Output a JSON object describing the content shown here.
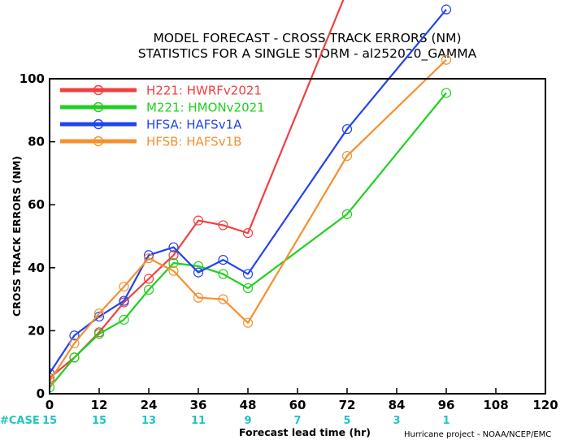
{
  "chart_data": {
    "type": "line",
    "title_line1": "MODEL FORECAST - CROSS TRACK ERRORS (NM)",
    "title_line2": "STATISTICS FOR A SINGLE STORM - al252020_GAMMA",
    "xlabel": "Forecast lead time (hr)",
    "ylabel": "CROSS TRACK ERRORS (NM)",
    "xlim": [
      0,
      120
    ],
    "ylim": [
      0,
      100
    ],
    "xticks": [
      0,
      12,
      24,
      36,
      48,
      60,
      72,
      84,
      96,
      108,
      120
    ],
    "yticks": [
      0,
      20,
      40,
      60,
      80,
      100
    ],
    "grid": false,
    "legend_position": "top-left",
    "case_label": "#CASE",
    "case_counts": [
      {
        "x": 0,
        "n": "15"
      },
      {
        "x": 12,
        "n": "15"
      },
      {
        "x": 24,
        "n": "13"
      },
      {
        "x": 36,
        "n": "11"
      },
      {
        "x": 48,
        "n": "9"
      },
      {
        "x": 60,
        "n": "7"
      },
      {
        "x": 72,
        "n": "5"
      },
      {
        "x": 84,
        "n": "3"
      },
      {
        "x": 96,
        "n": "1"
      }
    ],
    "case_color": "#22c4c4",
    "credit": "Hurricane project - NOAA/NCEP/EMC",
    "series": [
      {
        "name": "H221: HWRFv2021",
        "color": "#f04040",
        "x": [
          0,
          6,
          12,
          18,
          24,
          30,
          36,
          42,
          48,
          72
        ],
        "y": [
          5,
          11.5,
          19.5,
          29,
          36.5,
          44,
          55,
          53.5,
          51,
          128
        ]
      },
      {
        "name": "M221: HMONv2021",
        "color": "#20d020",
        "x": [
          0,
          6,
          12,
          18,
          24,
          30,
          36,
          42,
          48,
          72,
          96
        ],
        "y": [
          2,
          11.5,
          19,
          23.5,
          33,
          41.5,
          40.5,
          38,
          33.5,
          57,
          95.5
        ]
      },
      {
        "name": "HFSA: HAFSv1A",
        "color": "#2244ee",
        "x": [
          0,
          6,
          12,
          18,
          24,
          30,
          36,
          42,
          48,
          72,
          96
        ],
        "y": [
          6.5,
          18.5,
          24.5,
          29.5,
          44,
          46.5,
          38.5,
          42.5,
          38,
          84,
          122
        ]
      },
      {
        "name": "HFSB: HAFSv1B",
        "color": "#f59030",
        "x": [
          0,
          6,
          12,
          18,
          24,
          30,
          36,
          42,
          48,
          72,
          96
        ],
        "y": [
          4,
          16,
          25.5,
          34,
          43,
          39,
          30.5,
          30,
          22.5,
          75.5,
          106
        ]
      }
    ]
  }
}
